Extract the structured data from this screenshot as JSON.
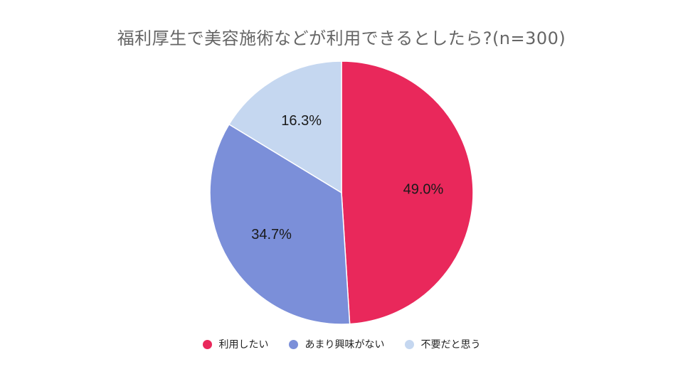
{
  "chart_data": {
    "type": "pie",
    "title": "福利厚生で美容施術などが利用できるとしたら?(n=300)",
    "slices": [
      {
        "label": "利用したい",
        "value": 49.0,
        "display": "49.0%",
        "color": "#E9285B"
      },
      {
        "label": "あまり興味がない",
        "value": 34.7,
        "display": "34.7%",
        "color": "#7B8FD9"
      },
      {
        "label": "不要だと思う",
        "value": 16.3,
        "display": "16.3%",
        "color": "#C5D7F0"
      }
    ],
    "legend_position": "bottom",
    "start_angle": "top, clockwise"
  }
}
